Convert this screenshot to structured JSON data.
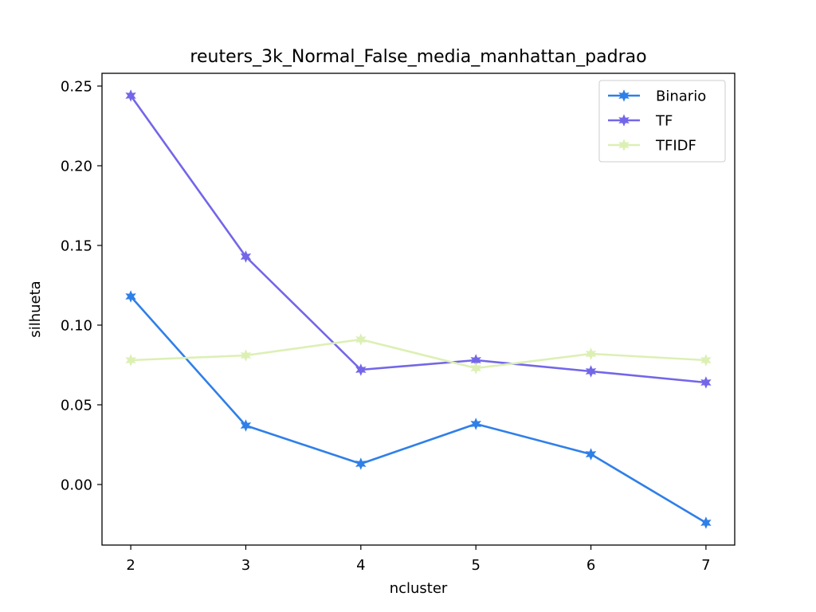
{
  "chart_data": {
    "type": "line",
    "title": "reuters_3k_Normal_False_media_manhattan_padrao",
    "xlabel": "ncluster",
    "ylabel": "silhueta",
    "x": [
      2,
      3,
      4,
      5,
      6,
      7
    ],
    "x_tick_labels": [
      "2",
      "3",
      "4",
      "5",
      "6",
      "7"
    ],
    "xlim": [
      1.75,
      7.25
    ],
    "ylim": [
      -0.038,
      0.258
    ],
    "y_ticks": [
      0.0,
      0.05,
      0.1,
      0.15,
      0.2,
      0.25
    ],
    "y_tick_labels": [
      "0.00",
      "0.05",
      "0.10",
      "0.15",
      "0.20",
      "0.25"
    ],
    "grid": false,
    "legend_position": "top-right",
    "marker": "star",
    "series": [
      {
        "name": "Binario",
        "color": "#2f7fe8",
        "values": [
          0.118,
          0.037,
          0.013,
          0.038,
          0.019,
          -0.024
        ]
      },
      {
        "name": "TF",
        "color": "#7366e8",
        "values": [
          0.244,
          0.143,
          0.072,
          0.078,
          0.071,
          0.064
        ]
      },
      {
        "name": "TFIDF",
        "color": "#dcf0b4",
        "values": [
          0.078,
          0.081,
          0.091,
          0.073,
          0.082,
          0.078
        ]
      }
    ]
  }
}
